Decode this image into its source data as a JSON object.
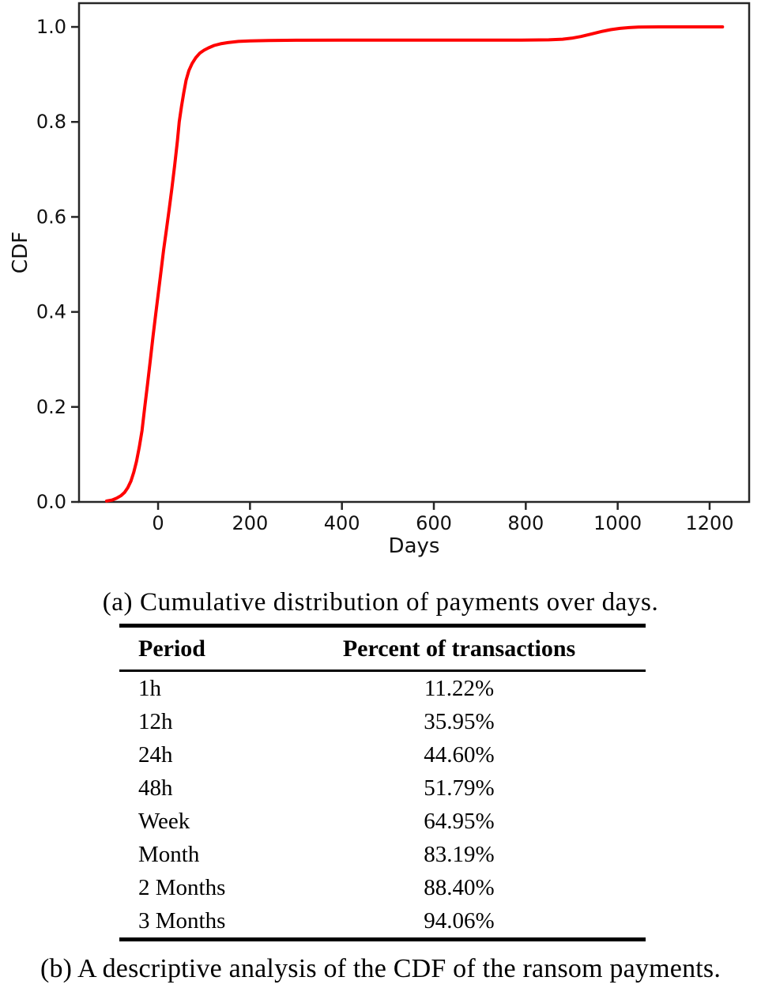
{
  "figure": {
    "caption_a": "(a) Cumulative distribution of payments over days.",
    "caption_b": "(b) A descriptive analysis of the CDF of the ransom payments."
  },
  "chart_data": {
    "type": "line",
    "title": "",
    "xlabel": "Days",
    "ylabel": "CDF",
    "xlim": [
      -172,
      1286
    ],
    "ylim": [
      0,
      1.05
    ],
    "grid": false,
    "legend": "none",
    "xticks": {
      "values": [
        0,
        200,
        400,
        600,
        800,
        1000,
        1200
      ],
      "labels": [
        "0",
        "200",
        "400",
        "600",
        "800",
        "1000",
        "1200"
      ]
    },
    "yticks": {
      "values": [
        0.0,
        0.2,
        0.4,
        0.6,
        0.8,
        1.0
      ],
      "labels": [
        "0.0",
        "0.2",
        "0.4",
        "0.6",
        "0.8",
        "1.0"
      ]
    },
    "series": [
      {
        "name": "cdf-of-payments",
        "color": "#ff0000",
        "points": [
          [
            -112,
            0.002
          ],
          [
            -100,
            0.004
          ],
          [
            -90,
            0.008
          ],
          [
            -81,
            0.013
          ],
          [
            -73,
            0.02
          ],
          [
            -66,
            0.03
          ],
          [
            -59,
            0.044
          ],
          [
            -53,
            0.062
          ],
          [
            -47,
            0.085
          ],
          [
            -41,
            0.115
          ],
          [
            -35,
            0.15
          ],
          [
            -29,
            0.2
          ],
          [
            -23,
            0.248
          ],
          [
            -17,
            0.298
          ],
          [
            -11,
            0.348
          ],
          [
            -5,
            0.396
          ],
          [
            0,
            0.435
          ],
          [
            6,
            0.482
          ],
          [
            12,
            0.53
          ],
          [
            18,
            0.572
          ],
          [
            24,
            0.615
          ],
          [
            30,
            0.66
          ],
          [
            36,
            0.708
          ],
          [
            42,
            0.76
          ],
          [
            46,
            0.8
          ],
          [
            51,
            0.833
          ],
          [
            56,
            0.862
          ],
          [
            61,
            0.888
          ],
          [
            67,
            0.908
          ],
          [
            74,
            0.923
          ],
          [
            82,
            0.935
          ],
          [
            91,
            0.945
          ],
          [
            100,
            0.951
          ],
          [
            110,
            0.956
          ],
          [
            122,
            0.961
          ],
          [
            136,
            0.9645
          ],
          [
            152,
            0.967
          ],
          [
            175,
            0.9695
          ],
          [
            200,
            0.9706
          ],
          [
            240,
            0.9715
          ],
          [
            300,
            0.972
          ],
          [
            400,
            0.9722
          ],
          [
            500,
            0.9722
          ],
          [
            600,
            0.9722
          ],
          [
            700,
            0.9722
          ],
          [
            790,
            0.9722
          ],
          [
            850,
            0.9728
          ],
          [
            880,
            0.9741
          ],
          [
            900,
            0.9763
          ],
          [
            920,
            0.9798
          ],
          [
            945,
            0.9856
          ],
          [
            965,
            0.9904
          ],
          [
            985,
            0.9942
          ],
          [
            1005,
            0.9969
          ],
          [
            1025,
            0.9986
          ],
          [
            1045,
            0.9995
          ],
          [
            1065,
            0.9999
          ],
          [
            1090,
            1.0
          ],
          [
            1130,
            1.0
          ],
          [
            1170,
            1.0
          ],
          [
            1228,
            1.0
          ]
        ]
      }
    ]
  },
  "table": {
    "columns": [
      "Period",
      "Percent of transactions"
    ],
    "rows": [
      [
        "1h",
        "11.22%"
      ],
      [
        "12h",
        "35.95%"
      ],
      [
        "24h",
        "44.60%"
      ],
      [
        "48h",
        "51.79%"
      ],
      [
        "Week",
        "64.95%"
      ],
      [
        "Month",
        "83.19%"
      ],
      [
        "2 Months",
        "88.40%"
      ],
      [
        "3 Months",
        "94.06%"
      ]
    ]
  },
  "colors": {
    "line": "#ff0000",
    "axis": "#262626",
    "chart_text": "#111111",
    "rule": "#000000"
  }
}
